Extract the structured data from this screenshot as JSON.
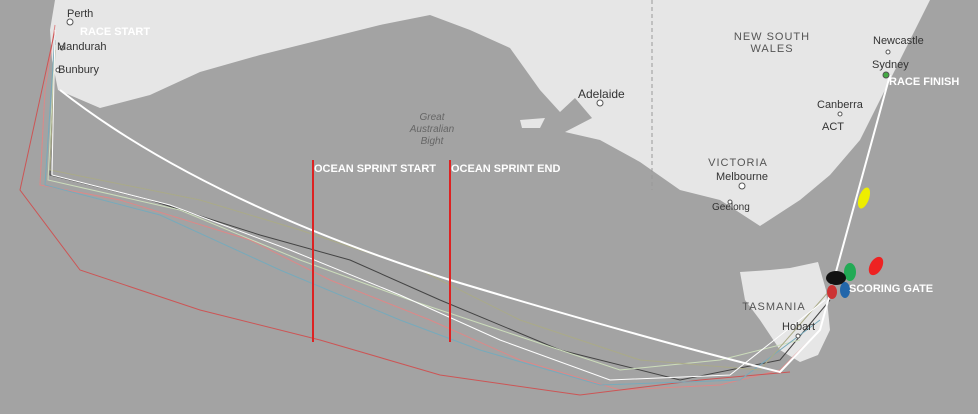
{
  "places": [
    {
      "label": "Perth"
    },
    {
      "label": "Mandurah"
    },
    {
      "label": "Bunbury"
    },
    {
      "label": "Adelaide"
    },
    {
      "label": "Newcastle"
    },
    {
      "label": "Sydney"
    },
    {
      "label": "Canberra"
    },
    {
      "label": "ACT"
    },
    {
      "label": "Melbourne"
    },
    {
      "label": "Geelong"
    },
    {
      "label": "Hobart"
    }
  ],
  "regions": [
    {
      "lines": [
        "NEW SOUTH",
        "WALES"
      ]
    },
    {
      "lines": [
        "VICTORIA"
      ]
    },
    {
      "lines": [
        "TASMANIA"
      ]
    }
  ],
  "water": {
    "lines": [
      "Great",
      "Australian",
      "Bight"
    ]
  },
  "route": {
    "start": "RACE START",
    "finish": "RACE FINISH",
    "scoring_gate": "SCORING GATE",
    "sprint_start": "OCEAN SPRINT START",
    "sprint_end": "OCEAN SPRINT END"
  }
}
